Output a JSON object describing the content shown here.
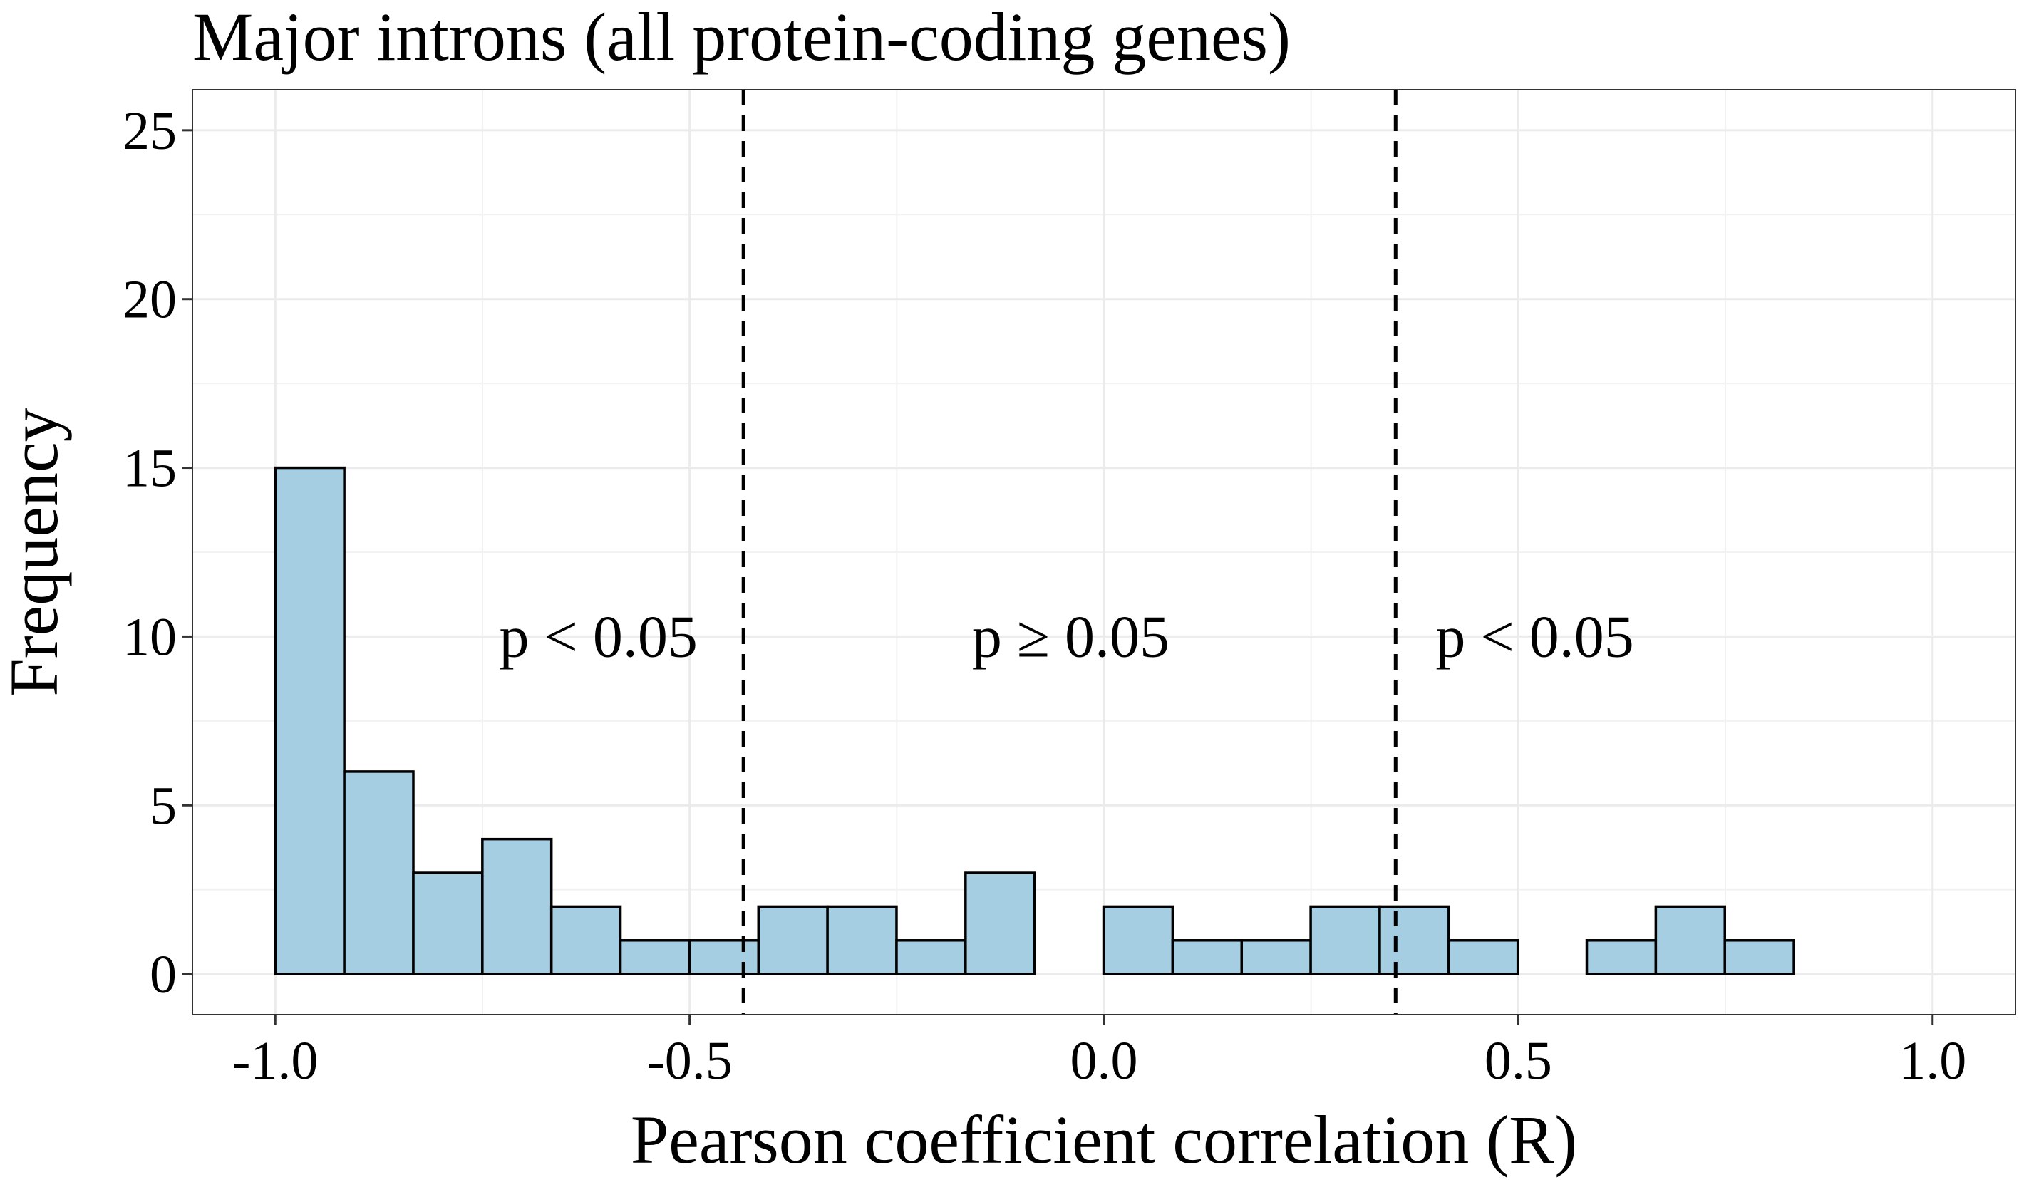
{
  "chart_data": {
    "type": "bar",
    "title": "Major introns (all protein-coding genes)",
    "xlabel": "Pearson coefficient correlation (R)",
    "ylabel": "Frequency",
    "xlim": [
      -1.1,
      1.1
    ],
    "ylim": [
      -1.2,
      26.2
    ],
    "x_ticks": [
      -1.0,
      -0.5,
      0.0,
      0.5,
      1.0
    ],
    "x_tick_labels": [
      "-1.0",
      "-0.5",
      "0.0",
      "0.5",
      "1.0"
    ],
    "y_ticks": [
      0,
      5,
      10,
      15,
      20,
      25
    ],
    "y_tick_labels": [
      "0",
      "5",
      "10",
      "15",
      "20",
      "25"
    ],
    "grid": true,
    "bin_start": -1.0,
    "bin_width": 0.0833,
    "values": [
      15,
      6,
      3,
      4,
      2,
      1,
      1,
      2,
      2,
      1,
      3,
      0,
      2,
      1,
      1,
      2,
      2,
      1,
      0,
      1,
      2,
      1,
      0,
      0
    ],
    "bar_fill": "#a6cee3",
    "bar_stroke": "#000000",
    "reference_lines": [
      -0.435,
      0.352
    ],
    "annotations": [
      {
        "text": "p < 0.05",
        "x": -0.61,
        "y": 10
      },
      {
        "text": "p  ≥  0.05",
        "x": -0.04,
        "y": 10
      },
      {
        "text": "p < 0.05",
        "x": 0.52,
        "y": 10
      }
    ]
  }
}
